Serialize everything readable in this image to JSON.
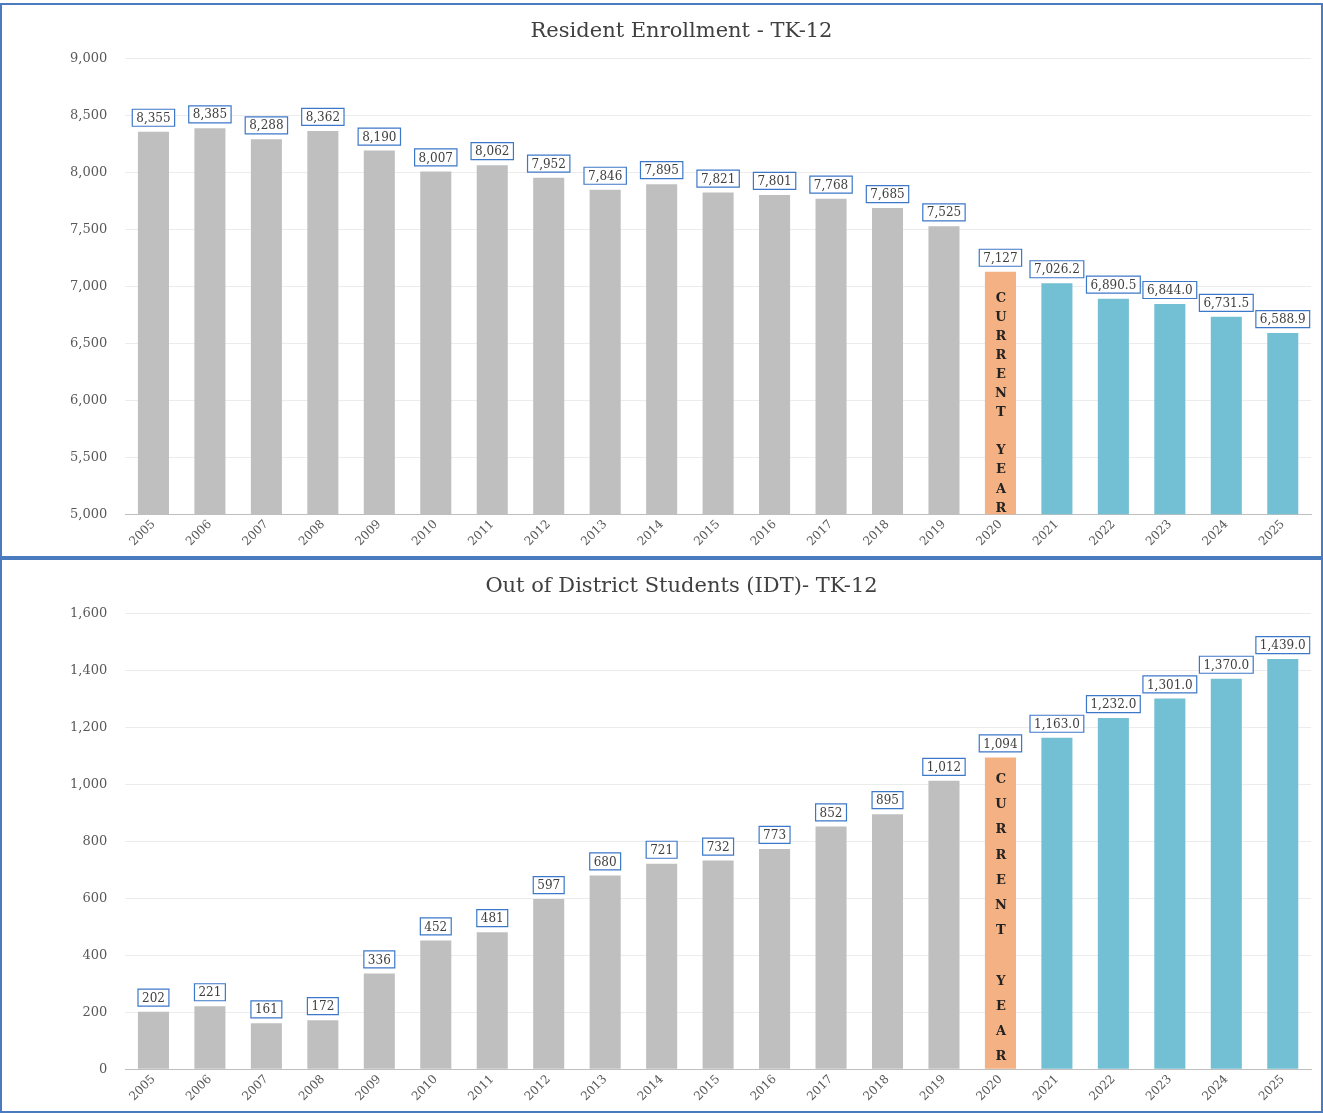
{
  "chart_data": [
    {
      "type": "bar",
      "title": "Resident Enrollment - TK-12",
      "categories": [
        "2005",
        "2006",
        "2007",
        "2008",
        "2009",
        "2010",
        "2011",
        "2012",
        "2013",
        "2014",
        "2015",
        "2016",
        "2017",
        "2018",
        "2019",
        "2020",
        "2021",
        "2022",
        "2023",
        "2024",
        "2025"
      ],
      "values": [
        8355,
        8385,
        8288,
        8362,
        8190,
        8007,
        8062,
        7952,
        7846,
        7895,
        7821,
        7801,
        7768,
        7685,
        7525,
        7127,
        7026.2,
        6890.5,
        6844.0,
        6731.5,
        6588.9
      ],
      "colors": [
        "#bfbfbf",
        "#bfbfbf",
        "#bfbfbf",
        "#bfbfbf",
        "#bfbfbf",
        "#bfbfbf",
        "#bfbfbf",
        "#bfbfbf",
        "#bfbfbf",
        "#bfbfbf",
        "#bfbfbf",
        "#bfbfbf",
        "#bfbfbf",
        "#bfbfbf",
        "#bfbfbf",
        "#f4b183",
        "#73c0d4",
        "#73c0d4",
        "#73c0d4",
        "#73c0d4",
        "#73c0d4"
      ],
      "value_labels": [
        "8,355",
        "8,385",
        "8,288",
        "8,362",
        "8,190",
        "8,007",
        "8,062",
        "7,952",
        "7,846",
        "7,895",
        "7,821",
        "7,801",
        "7,768",
        "7,685",
        "7,525",
        "7,127",
        "7,026.2",
        "6,890.5",
        "6,844.0",
        "6,731.5",
        "6,588.9"
      ],
      "ylim": [
        5000,
        9000
      ],
      "yticks": [
        {
          "value": 5000,
          "label": "5,000"
        },
        {
          "value": 5500,
          "label": "5,500"
        },
        {
          "value": 6000,
          "label": "6,000"
        },
        {
          "value": 6500,
          "label": "6,500"
        },
        {
          "value": 7000,
          "label": "7,000"
        },
        {
          "value": 7500,
          "label": "7,500"
        },
        {
          "value": 8000,
          "label": "8,000"
        },
        {
          "value": 8500,
          "label": "8,500"
        },
        {
          "value": 9000,
          "label": "9,000"
        }
      ],
      "grid": "y",
      "annotations": [
        {
          "text": "CURRENT YEAR",
          "x": "2020",
          "y": 6900
        }
      ]
    },
    {
      "type": "bar",
      "title": "Out of District Students (IDT)- TK-12",
      "categories": [
        "2005",
        "2006",
        "2007",
        "2008",
        "2009",
        "2010",
        "2011",
        "2012",
        "2013",
        "2014",
        "2015",
        "2016",
        "2017",
        "2018",
        "2019",
        "2020",
        "2021",
        "2022",
        "2023",
        "2024",
        "2025"
      ],
      "values": [
        202,
        221,
        161,
        172,
        336,
        452,
        481,
        597,
        680,
        721,
        732,
        773,
        852,
        895,
        1012,
        1094,
        1163.0,
        1232.0,
        1301.0,
        1370.0,
        1439.0
      ],
      "colors": [
        "#bfbfbf",
        "#bfbfbf",
        "#bfbfbf",
        "#bfbfbf",
        "#bfbfbf",
        "#bfbfbf",
        "#bfbfbf",
        "#bfbfbf",
        "#bfbfbf",
        "#bfbfbf",
        "#bfbfbf",
        "#bfbfbf",
        "#bfbfbf",
        "#bfbfbf",
        "#bfbfbf",
        "#f4b183",
        "#73c0d4",
        "#73c0d4",
        "#73c0d4",
        "#73c0d4",
        "#73c0d4"
      ],
      "value_labels": [
        "202",
        "221",
        "161",
        "172",
        "336",
        "452",
        "481",
        "597",
        "680",
        "721",
        "732",
        "773",
        "852",
        "895",
        "1,012",
        "1,094",
        "1,163.0",
        "1,232.0",
        "1,301.0",
        "1,370.0",
        "1,439.0"
      ],
      "ylim": [
        0,
        1600
      ],
      "yticks": [
        0,
        200,
        400,
        600,
        800,
        {
          "value": 1000,
          "label": "1,000"
        },
        {
          "value": 1200,
          "label": "1,200"
        },
        {
          "value": 1400,
          "label": "1,400"
        },
        {
          "value": 1600,
          "label": "1,600"
        }
      ],
      "grid": "y",
      "annotations": [
        {
          "text": "CURRENT YEAR",
          "x": "2020",
          "y": 1020
        }
      ]
    }
  ]
}
